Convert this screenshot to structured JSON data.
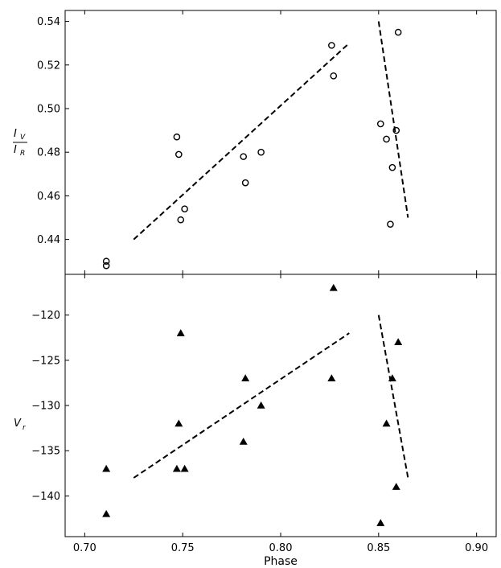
{
  "chart_data": [
    {
      "type": "scatter",
      "ylabel": {
        "main": "I",
        "sub_top": "V",
        "sub_bottom": "R"
      },
      "xlim": [
        0.69,
        0.91
      ],
      "ylim": [
        0.424,
        0.545
      ],
      "yticks": [
        0.44,
        0.46,
        0.48,
        0.5,
        0.52,
        0.54
      ],
      "ytick_labels": [
        "0.44",
        "0.46",
        "0.48",
        "0.50",
        "0.52",
        "0.54"
      ],
      "marker": "open-circle",
      "points": [
        {
          "x": 0.711,
          "y": 0.428
        },
        {
          "x": 0.711,
          "y": 0.43
        },
        {
          "x": 0.747,
          "y": 0.487
        },
        {
          "x": 0.748,
          "y": 0.479
        },
        {
          "x": 0.749,
          "y": 0.449
        },
        {
          "x": 0.751,
          "y": 0.454
        },
        {
          "x": 0.781,
          "y": 0.478
        },
        {
          "x": 0.782,
          "y": 0.466
        },
        {
          "x": 0.79,
          "y": 0.48
        },
        {
          "x": 0.826,
          "y": 0.529
        },
        {
          "x": 0.827,
          "y": 0.515
        },
        {
          "x": 0.851,
          "y": 0.493
        },
        {
          "x": 0.854,
          "y": 0.486
        },
        {
          "x": 0.856,
          "y": 0.447
        },
        {
          "x": 0.857,
          "y": 0.473
        },
        {
          "x": 0.859,
          "y": 0.49
        },
        {
          "x": 0.86,
          "y": 0.535
        }
      ],
      "fit_lines": [
        {
          "x": [
            0.725,
            0.835
          ],
          "y": [
            0.44,
            0.53
          ],
          "style": "dashed"
        },
        {
          "x": [
            0.85,
            0.865
          ],
          "y": [
            0.54,
            0.45
          ],
          "style": "dashed"
        }
      ]
    },
    {
      "type": "scatter",
      "ylabel": {
        "main": "V",
        "sub": "r"
      },
      "xlabel": "Phase",
      "xlim": [
        0.69,
        0.91
      ],
      "ylim": [
        -144.5,
        -115.5
      ],
      "yticks": [
        -140,
        -135,
        -130,
        -125,
        -120
      ],
      "ytick_labels": [
        "−140",
        "−135",
        "−130",
        "−125",
        "−120"
      ],
      "xticks": [
        0.7,
        0.75,
        0.8,
        0.85,
        0.9
      ],
      "xtick_labels": [
        "0.70",
        "0.75",
        "0.80",
        "0.85",
        "0.90"
      ],
      "marker": "filled-triangle",
      "points": [
        {
          "x": 0.711,
          "y": -137
        },
        {
          "x": 0.711,
          "y": -142
        },
        {
          "x": 0.747,
          "y": -137
        },
        {
          "x": 0.748,
          "y": -132
        },
        {
          "x": 0.749,
          "y": -122
        },
        {
          "x": 0.751,
          "y": -137
        },
        {
          "x": 0.781,
          "y": -134
        },
        {
          "x": 0.782,
          "y": -127
        },
        {
          "x": 0.79,
          "y": -130
        },
        {
          "x": 0.826,
          "y": -127
        },
        {
          "x": 0.827,
          "y": -117
        },
        {
          "x": 0.851,
          "y": -143
        },
        {
          "x": 0.854,
          "y": -132
        },
        {
          "x": 0.857,
          "y": -127
        },
        {
          "x": 0.859,
          "y": -139
        },
        {
          "x": 0.86,
          "y": -123
        }
      ],
      "fit_lines": [
        {
          "x": [
            0.725,
            0.835
          ],
          "y": [
            -138,
            -122
          ],
          "style": "dashed"
        },
        {
          "x": [
            0.85,
            0.865
          ],
          "y": [
            -120,
            -138
          ],
          "style": "dashed"
        }
      ]
    }
  ]
}
